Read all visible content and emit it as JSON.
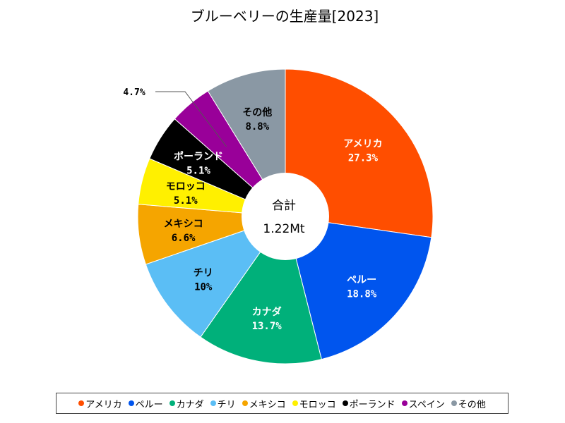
{
  "chart_data": {
    "type": "pie",
    "title": "ブルーベリーの生産量[2023]",
    "center_label": "合計",
    "center_value": "1.22Mt",
    "slices": [
      {
        "name": "アメリカ",
        "value": 27.3,
        "label": "27.3%",
        "color": "#FF4E00"
      },
      {
        "name": "ペルー",
        "value": 18.8,
        "label": "18.8%",
        "color": "#0055EE"
      },
      {
        "name": "カナダ",
        "value": 13.7,
        "label": "13.7%",
        "color": "#00B07A"
      },
      {
        "name": "チリ",
        "value": 10,
        "label": "10%",
        "color": "#5BBEF5"
      },
      {
        "name": "メキシコ",
        "value": 6.6,
        "label": "6.6%",
        "color": "#F5A500"
      },
      {
        "name": "モロッコ",
        "value": 5.1,
        "label": "5.1%",
        "color": "#FFF000"
      },
      {
        "name": "ポーランド",
        "value": 5.1,
        "label": "5.1%",
        "color": "#000000"
      },
      {
        "name": "スペイン",
        "value": 4.7,
        "label": "4.7%",
        "color": "#990099"
      },
      {
        "name": "その他",
        "value": 8.8,
        "label": "8.8%",
        "color": "#8A98A4"
      }
    ],
    "legend_position": "bottom"
  }
}
